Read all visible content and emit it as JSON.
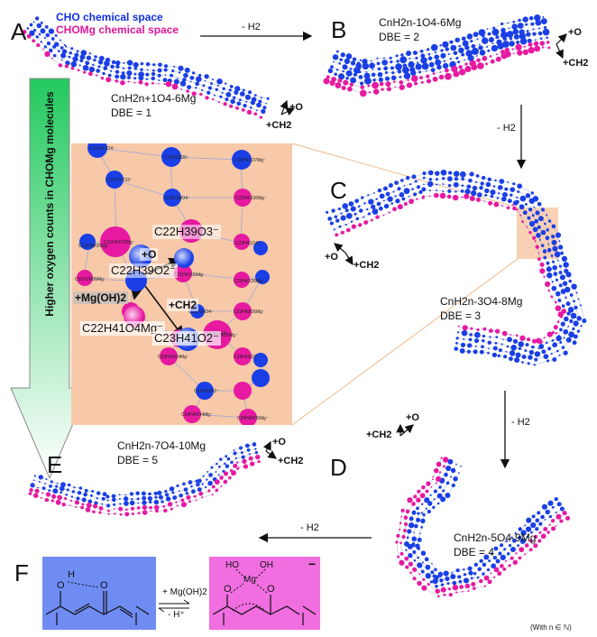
{
  "legend": {
    "cho": "CHO chemical space",
    "chomg": "CHOMg chemical space"
  },
  "colors": {
    "cho": "#1a3fe6",
    "chomg": "#e619a0",
    "inset_bg": "#f7c9a8",
    "box_blue": "#6f8cf2",
    "box_pink": "#f06ee0"
  },
  "panels": {
    "A": {
      "label": "A",
      "formula": "CnH2n+1O4-6Mg",
      "dbe": "DBE = 1"
    },
    "B": {
      "label": "B",
      "formula": "CnH2n-1O4-6Mg",
      "dbe": "DBE = 2"
    },
    "C": {
      "label": "C",
      "formula": "CnH2n-3O4-8Mg",
      "dbe": "DBE = 3"
    },
    "D": {
      "label": "D",
      "formula": "CnH2n-5O4-9Mg",
      "dbe": "DBE = 4"
    },
    "E": {
      "label": "E",
      "formula": "CnH2n-7O4-10Mg",
      "dbe": "DBE = 5"
    },
    "F": {
      "label": "F"
    }
  },
  "transition_label": "- H2",
  "direction": {
    "o": "+O",
    "ch2": "+CH2"
  },
  "side_arrow_text": "Higher oxygen counts in CHOMg molecules",
  "inset": {
    "center": "C22H39O2⁻",
    "up": "C22H39O3⁻",
    "down": "C23H41O2⁻",
    "left": "C22H41O4Mg⁻",
    "edge_o": "+O",
    "edge_ch2": "+CH2",
    "edge_mg": "+Mg(OH)2",
    "small_labels": [
      "C21H37O4⁻",
      "C22H39O5⁻",
      "C22H41O7Mg⁻",
      "C21H37O3⁻",
      "C23H39O4⁻",
      "C22H41O6Mg⁻",
      "C21H41O7Mg⁻",
      "C21H39O6Mg⁻",
      "C23H41O4⁻",
      "C21H41O5Mg⁻",
      "C21H39O5Mg⁻",
      "C22H41O5Mg⁻",
      "C23H43O6Mg⁻",
      "C21H39O4⁻",
      "C23H43O3⁻",
      "C23H43O5Mg⁻",
      "C23H43O4Mg⁻",
      "C24H43O3⁻",
      "C24H43O2⁻",
      "C24H45O5Mg⁻",
      "C24H45O4Mg⁻"
    ]
  },
  "reaction": {
    "reagent": "+ Mg(OH)2",
    "byproduct": "- H⁺",
    "ho": "HO",
    "oh": "OH",
    "mg": "Mg",
    "o": "O",
    "h": "H",
    "charge": "−"
  },
  "footnote": "(With n ∈ ℕ)"
}
